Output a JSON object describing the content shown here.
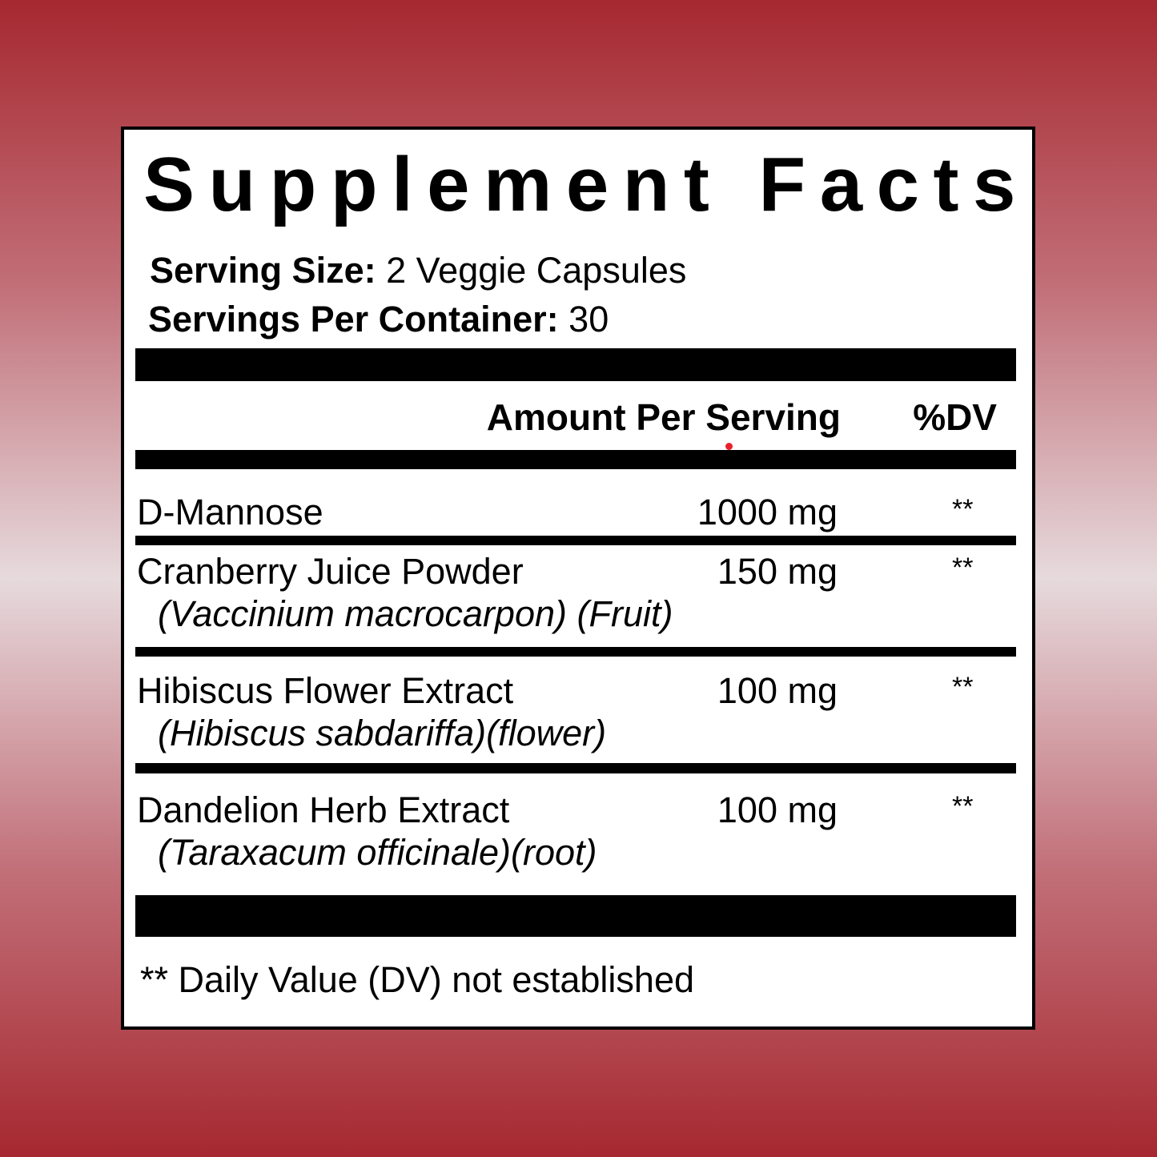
{
  "title": "Supplement Facts",
  "serving_size": {
    "label": "Serving Size:",
    "value": "2 Veggie Capsules"
  },
  "servings_per_container": {
    "label": "Servings Per Container:",
    "value": "30"
  },
  "headers": {
    "amount": "Amount Per Serving",
    "dv": "%DV"
  },
  "ingredients": [
    {
      "name": "D-Mannose",
      "sub": "",
      "amount": "1000 mg",
      "dv": "**"
    },
    {
      "name": "Cranberry Juice Powder",
      "sub": "(Vaccinium macrocarpon) (Fruit)",
      "amount": "150 mg",
      "dv": "**"
    },
    {
      "name": "Hibiscus Flower Extract",
      "sub": "(Hibiscus sabdariffa)(flower)",
      "amount": "100 mg",
      "dv": "**"
    },
    {
      "name": "Dandelion Herb Extract",
      "sub": "(Taraxacum officinale)(root)",
      "amount": "100 mg",
      "dv": "**"
    }
  ],
  "footnote": "** Daily Value (DV) not established",
  "colors": {
    "background_edge": "#a62830",
    "background_center": "#e6dadd",
    "marker_dot": "#e8202a"
  }
}
